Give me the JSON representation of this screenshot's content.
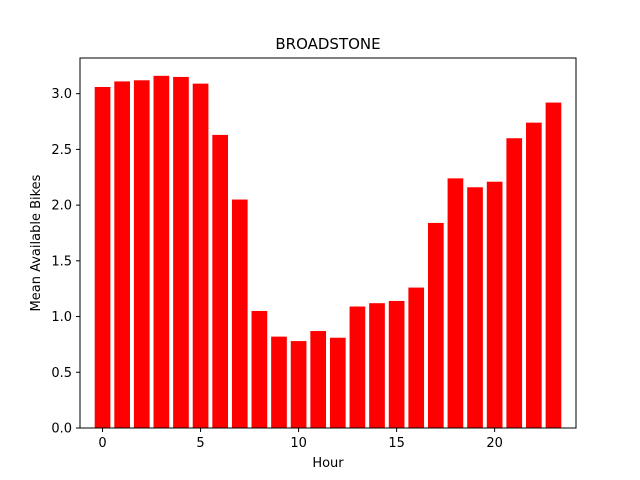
{
  "chart_data": {
    "type": "bar",
    "title": "BROADSTONE",
    "xlabel": "Hour",
    "ylabel": "Mean Available Bikes",
    "bar_color": "#ff0000",
    "categories": [
      0,
      1,
      2,
      3,
      4,
      5,
      6,
      7,
      8,
      9,
      10,
      11,
      12,
      13,
      14,
      15,
      16,
      17,
      18,
      19,
      20,
      21,
      22,
      23
    ],
    "values": [
      3.06,
      3.11,
      3.12,
      3.16,
      3.15,
      3.09,
      2.63,
      2.05,
      1.05,
      0.82,
      0.78,
      0.87,
      0.81,
      1.09,
      1.12,
      1.14,
      1.26,
      1.84,
      2.24,
      2.16,
      2.21,
      2.6,
      2.74,
      2.92
    ],
    "xlim": [
      -1.15,
      24.15
    ],
    "ylim": [
      0,
      3.32
    ],
    "xticks": [
      0,
      5,
      10,
      15,
      20
    ],
    "xtick_labels": [
      "0",
      "5",
      "10",
      "15",
      "20"
    ],
    "yticks": [
      0,
      0.5,
      1.0,
      1.5,
      2.0,
      2.5,
      3.0
    ],
    "ytick_labels": [
      "0.0",
      "0.5",
      "1.0",
      "1.5",
      "2.0",
      "2.5",
      "3.0"
    ],
    "grid": false,
    "legend": false
  }
}
